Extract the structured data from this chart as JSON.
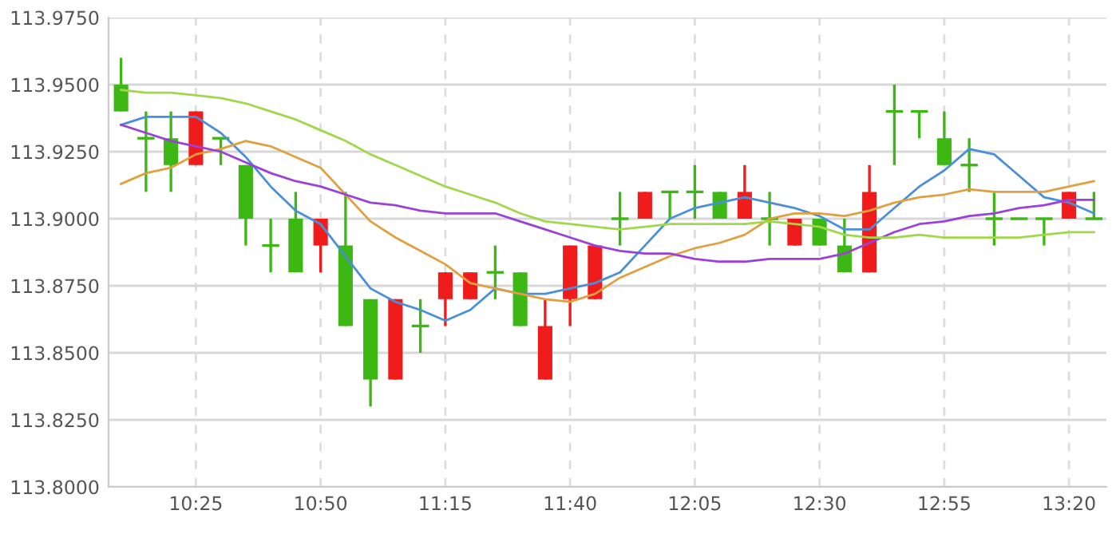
{
  "chart_data": {
    "type": "candlestick",
    "categories": [
      null,
      null,
      null,
      "10:25",
      null,
      null,
      null,
      null,
      "10:50",
      null,
      null,
      null,
      null,
      "11:15",
      null,
      null,
      null,
      null,
      "11:40",
      null,
      null,
      null,
      null,
      "12:05",
      null,
      null,
      null,
      null,
      "12:30",
      null,
      null,
      null,
      null,
      "12:55",
      null,
      null,
      null,
      null,
      "13:20",
      null
    ],
    "ylim": [
      113.8,
      113.975
    ],
    "yticks": [
      {
        "value": 113.8,
        "label": "113.8000"
      },
      {
        "value": 113.825,
        "label": "113.8250"
      },
      {
        "value": 113.85,
        "label": "113.8500"
      },
      {
        "value": 113.875,
        "label": "113.8750"
      },
      {
        "value": 113.9,
        "label": "113.9000"
      },
      {
        "value": 113.925,
        "label": "113.9250"
      },
      {
        "value": 113.95,
        "label": "113.9500"
      },
      {
        "value": 113.975,
        "label": "113.9750"
      }
    ],
    "grid": true,
    "series": [
      {
        "type": "candlestick",
        "ohlc": [
          [
            113.95,
            113.96,
            113.94,
            113.94
          ],
          [
            113.93,
            113.94,
            113.91,
            113.93
          ],
          [
            113.93,
            113.94,
            113.91,
            113.92
          ],
          [
            113.92,
            113.94,
            113.92,
            113.94
          ],
          [
            113.93,
            113.93,
            113.92,
            113.93
          ],
          [
            113.92,
            113.92,
            113.89,
            113.9
          ],
          [
            113.89,
            113.9,
            113.88,
            113.89
          ],
          [
            113.9,
            113.91,
            113.88,
            113.88
          ],
          [
            113.89,
            113.9,
            113.88,
            113.9
          ],
          [
            113.89,
            113.91,
            113.86,
            113.86
          ],
          [
            113.87,
            113.87,
            113.83,
            113.84
          ],
          [
            113.84,
            113.87,
            113.84,
            113.87
          ],
          [
            113.86,
            113.87,
            113.85,
            113.86
          ],
          [
            113.87,
            113.88,
            113.86,
            113.88
          ],
          [
            113.87,
            113.88,
            113.87,
            113.88
          ],
          [
            113.88,
            113.89,
            113.87,
            113.88
          ],
          [
            113.88,
            113.88,
            113.86,
            113.86
          ],
          [
            113.84,
            113.87,
            113.84,
            113.86
          ],
          [
            113.87,
            113.89,
            113.86,
            113.89
          ],
          [
            113.87,
            113.89,
            113.87,
            113.89
          ],
          [
            113.9,
            113.91,
            113.89,
            113.9
          ],
          [
            113.9,
            113.91,
            113.9,
            113.91
          ],
          [
            113.91,
            113.91,
            113.9,
            113.91
          ],
          [
            113.91,
            113.92,
            113.9,
            113.91
          ],
          [
            113.91,
            113.91,
            113.9,
            113.9
          ],
          [
            113.9,
            113.92,
            113.9,
            113.91
          ],
          [
            113.9,
            113.91,
            113.89,
            113.9
          ],
          [
            113.89,
            113.9,
            113.89,
            113.9
          ],
          [
            113.9,
            113.9,
            113.89,
            113.89
          ],
          [
            113.89,
            113.9,
            113.88,
            113.88
          ],
          [
            113.88,
            113.92,
            113.88,
            113.91
          ],
          [
            113.94,
            113.95,
            113.92,
            113.94
          ],
          [
            113.94,
            113.94,
            113.93,
            113.94
          ],
          [
            113.93,
            113.94,
            113.92,
            113.92
          ],
          [
            113.92,
            113.93,
            113.91,
            113.92
          ],
          [
            113.9,
            113.91,
            113.89,
            113.9
          ],
          [
            113.9,
            113.9,
            113.9,
            113.9
          ],
          [
            113.9,
            113.9,
            113.89,
            113.9
          ],
          [
            113.9,
            113.91,
            113.9,
            113.91
          ],
          [
            113.9,
            113.91,
            113.9,
            113.9
          ]
        ],
        "colors": [
          "#3cb714",
          "#3cb714",
          "#3cb714",
          "#f01c1c",
          "#3cb714",
          "#3cb714",
          "#3cb714",
          "#3cb714",
          "#f01c1c",
          "#3cb714",
          "#3cb714",
          "#f01c1c",
          "#3cb714",
          "#f01c1c",
          "#f01c1c",
          "#3cb714",
          "#3cb714",
          "#f01c1c",
          "#f01c1c",
          "#f01c1c",
          "#3cb714",
          "#f01c1c",
          "#3cb714",
          "#3cb714",
          "#3cb714",
          "#f01c1c",
          "#3cb714",
          "#f01c1c",
          "#3cb714",
          "#3cb714",
          "#f01c1c",
          "#3cb714",
          "#3cb714",
          "#3cb714",
          "#3cb714",
          "#3cb714",
          "#3cb714",
          "#3cb714",
          "#f01c1c",
          "#3cb714"
        ]
      },
      {
        "type": "line",
        "color": "#4a90d9",
        "values": [
          113.935,
          113.938,
          113.938,
          113.938,
          113.932,
          113.923,
          113.912,
          113.903,
          113.898,
          113.886,
          113.874,
          113.869,
          113.866,
          113.862,
          113.866,
          113.874,
          113.872,
          113.872,
          113.874,
          113.876,
          113.88,
          113.89,
          113.9,
          113.904,
          113.906,
          113.908,
          113.906,
          113.904,
          113.901,
          113.896,
          113.896,
          113.904,
          113.912,
          113.918,
          113.926,
          113.924,
          113.916,
          113.908,
          113.906,
          113.902
        ]
      },
      {
        "type": "line",
        "color": "#e0a040",
        "values": [
          113.913,
          113.917,
          113.919,
          113.924,
          113.926,
          113.929,
          113.927,
          113.923,
          113.919,
          113.909,
          113.899,
          113.893,
          113.888,
          113.883,
          113.876,
          113.874,
          113.872,
          113.87,
          113.869,
          113.872,
          113.878,
          113.882,
          113.886,
          113.889,
          113.891,
          113.894,
          113.9,
          113.902,
          113.902,
          113.901,
          113.903,
          113.906,
          113.908,
          113.909,
          113.911,
          113.91,
          113.91,
          113.91,
          113.912,
          113.914
        ]
      },
      {
        "type": "line",
        "color": "#9b40d8",
        "values": [
          113.935,
          113.932,
          113.929,
          113.927,
          113.925,
          113.921,
          113.917,
          113.914,
          113.912,
          113.909,
          113.906,
          113.905,
          113.903,
          113.902,
          113.902,
          113.902,
          113.899,
          113.896,
          113.893,
          113.89,
          113.888,
          113.887,
          113.887,
          113.885,
          113.884,
          113.884,
          113.885,
          113.885,
          113.885,
          113.887,
          113.891,
          113.895,
          113.898,
          113.899,
          113.901,
          113.902,
          113.904,
          113.905,
          113.907,
          113.907
        ]
      },
      {
        "type": "line",
        "color": "#9fd84a",
        "values": [
          113.948,
          113.947,
          113.947,
          113.946,
          113.945,
          113.943,
          113.94,
          113.937,
          113.933,
          113.929,
          113.924,
          113.92,
          113.916,
          113.912,
          113.909,
          113.906,
          113.902,
          113.899,
          113.898,
          113.897,
          113.896,
          113.897,
          113.898,
          113.898,
          113.898,
          113.898,
          113.899,
          113.898,
          113.897,
          113.894,
          113.893,
          113.893,
          113.894,
          113.893,
          113.893,
          113.893,
          113.893,
          113.894,
          113.895,
          113.895
        ]
      }
    ]
  }
}
